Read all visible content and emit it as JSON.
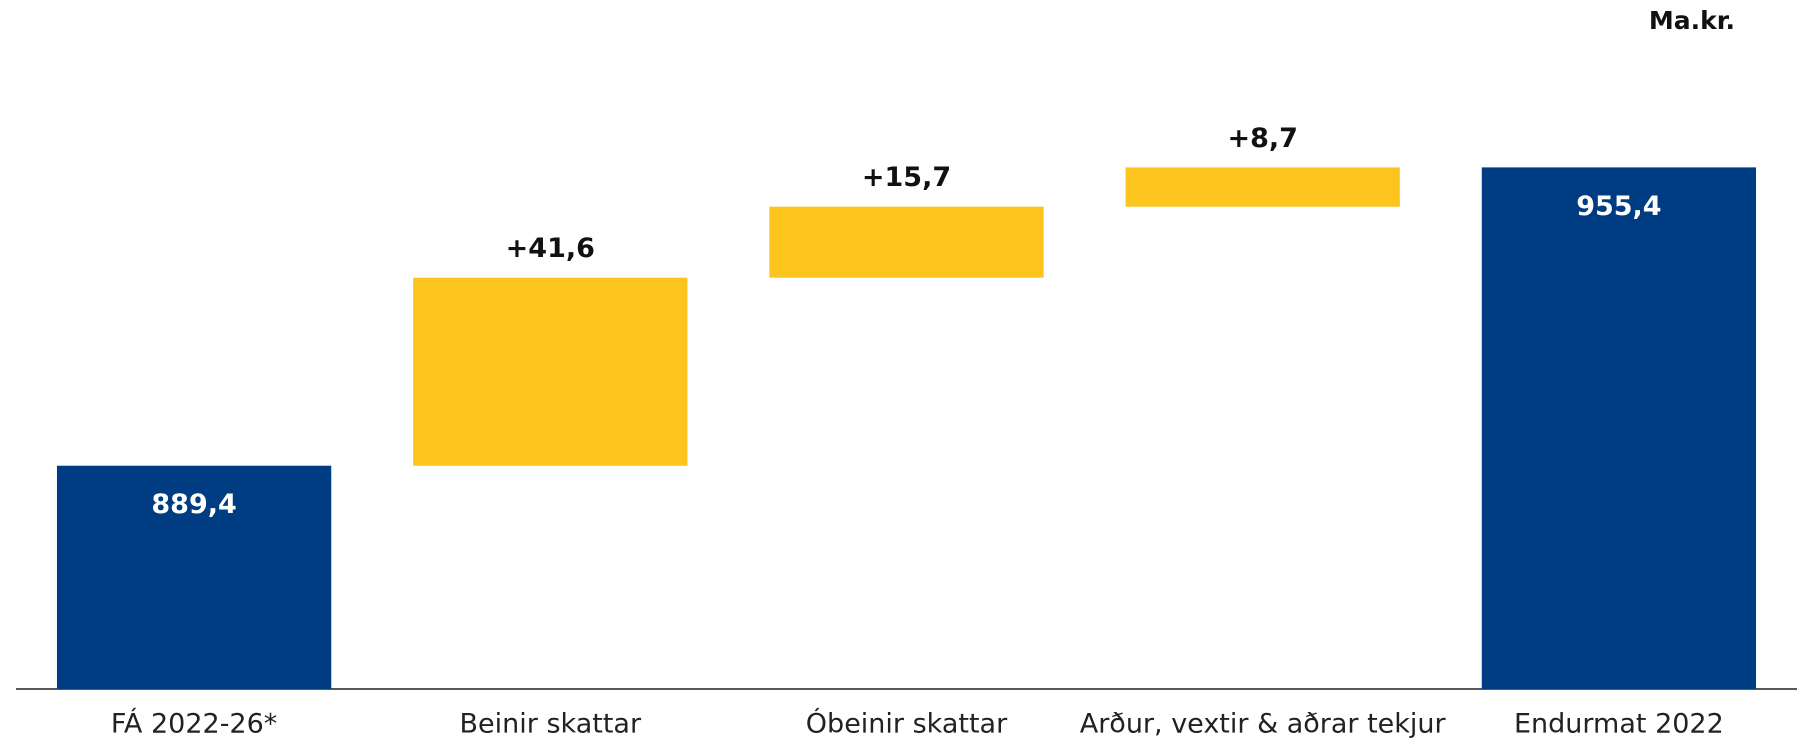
{
  "chart_data": {
    "type": "waterfall",
    "unit_label": "Ma.kr.",
    "categories": [
      "FÁ 2022-26*",
      "Beinir skattar",
      "Óbeinir skattar",
      "Arður, vextir & aðrar tekjur",
      "Endurmat 2022"
    ],
    "values": [
      889.4,
      41.6,
      15.7,
      8.7,
      955.4
    ],
    "value_labels": [
      "889,4",
      "+41,6",
      "+15,7",
      "+8,7",
      "955,4"
    ],
    "measure": [
      "total",
      "relative",
      "relative",
      "relative",
      "total"
    ],
    "colors": {
      "total": "#003c82",
      "relative": "#fcc41d"
    },
    "ylim": [
      840,
      990
    ]
  }
}
